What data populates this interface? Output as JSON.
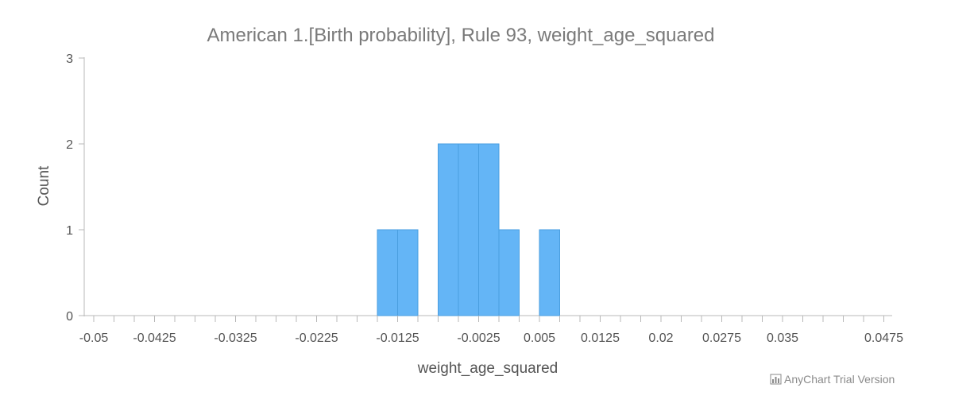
{
  "chart_data": {
    "type": "bar",
    "title": "American 1.[Birth probability], Rule 93, weight_age_squared",
    "xlabel": "weight_age_squared",
    "ylabel": "Count",
    "xlim": [
      -0.05,
      0.05
    ],
    "ylim": [
      0,
      3
    ],
    "bin_width": 0.0025,
    "bins": [
      {
        "x0": -0.015,
        "x1": -0.0125,
        "count": 1
      },
      {
        "x0": -0.0125,
        "x1": -0.01,
        "count": 1
      },
      {
        "x0": -0.01,
        "x1": -0.0075,
        "count": 0
      },
      {
        "x0": -0.0075,
        "x1": -0.005,
        "count": 2
      },
      {
        "x0": -0.005,
        "x1": -0.0025,
        "count": 2
      },
      {
        "x0": -0.0025,
        "x1": 0,
        "count": 2
      },
      {
        "x0": 0,
        "x1": 0.0025,
        "count": 1
      },
      {
        "x0": 0.0025,
        "x1": 0.005,
        "count": 0
      },
      {
        "x0": 0.005,
        "x1": 0.0075,
        "count": 1
      }
    ],
    "x_ticks": [
      "-0.05",
      "-0.0425",
      "-0.0325",
      "-0.0225",
      "-0.0125",
      "-0.0025",
      "0.005",
      "0.0125",
      "0.02",
      "0.0275",
      "0.035",
      "0.0475"
    ],
    "y_ticks": [
      "0",
      "1",
      "2",
      "3"
    ],
    "grid": false,
    "legend": "none",
    "bar_color": "#64b5f6",
    "bar_stroke": "#4a9ee0"
  },
  "credits": {
    "text": "AnyChart Trial Version",
    "icon": "bar-chart-icon"
  }
}
